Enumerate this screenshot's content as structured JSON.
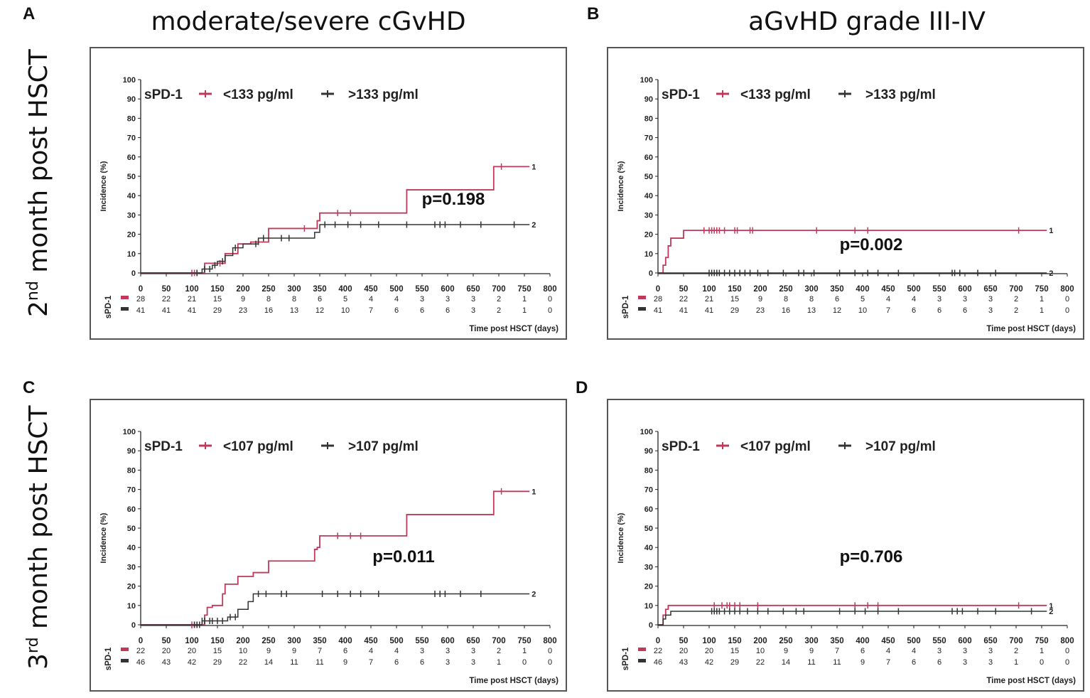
{
  "figure": {
    "column_titles": [
      "moderate/severe cGvHD",
      "aGvHD grade III-IV"
    ],
    "row_titles": [
      {
        "prefix": "2",
        "sup": "nd",
        "rest": " month post HSCT"
      },
      {
        "prefix": "3",
        "sup": "rd",
        "rest": " month post HSCT"
      }
    ],
    "colors": {
      "red": "#c0395a",
      "black": "#333333"
    }
  },
  "chart_data": [
    {
      "panel": "A",
      "type": "line",
      "step": true,
      "ylabel": "Incidence (%)",
      "xlabel": "Time post HSCT (days)",
      "xlim": [
        0,
        800
      ],
      "ylim": [
        0,
        100
      ],
      "xticks": [
        0,
        50,
        100,
        150,
        200,
        250,
        300,
        350,
        400,
        450,
        500,
        550,
        600,
        650,
        700,
        750,
        800
      ],
      "yticks": [
        0,
        10,
        20,
        30,
        40,
        50,
        60,
        70,
        80,
        90,
        100
      ],
      "legend_title": "sPD-1",
      "legend": [
        "<133 pg/ml",
        ">133 pg/ml"
      ],
      "p_value": "p=0.198",
      "risk_label": "sPD-1",
      "series": [
        {
          "name": "<133 pg/ml",
          "end_label": "1",
          "color": "#c0395a",
          "x": [
            0,
            125,
            165,
            190,
            215,
            250,
            345,
            350,
            520,
            690,
            760
          ],
          "y": [
            0,
            5,
            10,
            15,
            16,
            23,
            27,
            31,
            43,
            55,
            55
          ],
          "censor": [
            100,
            105,
            110,
            155,
            230,
            320,
            385,
            410,
            705
          ],
          "at_risk": [
            28,
            22,
            21,
            15,
            9,
            8,
            8,
            6,
            5,
            4,
            4,
            3,
            3,
            3,
            2,
            1,
            0
          ]
        },
        {
          "name": ">133 pg/ml",
          "end_label": "2",
          "color": "#333333",
          "x": [
            0,
            120,
            140,
            150,
            165,
            180,
            200,
            230,
            340,
            350,
            760
          ],
          "y": [
            0,
            2,
            4,
            6,
            9,
            13,
            15,
            18,
            21,
            25,
            25
          ],
          "censor": [
            110,
            125,
            135,
            145,
            160,
            185,
            225,
            240,
            275,
            290,
            360,
            380,
            405,
            430,
            465,
            520,
            575,
            585,
            595,
            625,
            665,
            730
          ],
          "at_risk": [
            41,
            41,
            41,
            29,
            23,
            16,
            13,
            12,
            10,
            7,
            6,
            6,
            6,
            3,
            2,
            1,
            0
          ]
        }
      ]
    },
    {
      "panel": "B",
      "type": "line",
      "step": true,
      "ylabel": "Incidence (%)",
      "xlabel": "Time post HSCT (days)",
      "xlim": [
        0,
        800
      ],
      "ylim": [
        0,
        100
      ],
      "xticks": [
        0,
        50,
        100,
        150,
        200,
        250,
        300,
        350,
        400,
        450,
        500,
        550,
        600,
        650,
        700,
        750,
        800
      ],
      "yticks": [
        0,
        10,
        20,
        30,
        40,
        50,
        60,
        70,
        80,
        90,
        100
      ],
      "legend_title": "sPD-1",
      "legend": [
        "<133 pg/ml",
        ">133 pg/ml"
      ],
      "p_value": "p=0.002",
      "risk_label": "sPD-1",
      "series": [
        {
          "name": "<133 pg/ml",
          "end_label": "1",
          "color": "#c0395a",
          "x": [
            0,
            10,
            15,
            20,
            25,
            30,
            50,
            760
          ],
          "y": [
            0,
            4,
            8,
            14,
            18,
            18,
            22,
            22
          ],
          "censor": [
            90,
            100,
            105,
            110,
            115,
            120,
            130,
            150,
            155,
            180,
            185,
            310,
            385,
            410,
            705
          ],
          "at_risk": [
            28,
            22,
            21,
            15,
            9,
            8,
            8,
            6,
            5,
            4,
            4,
            3,
            3,
            3,
            2,
            1,
            0
          ]
        },
        {
          "name": ">133 pg/ml",
          "end_label": "2",
          "color": "#333333",
          "x": [
            0,
            760
          ],
          "y": [
            0,
            0
          ],
          "censor": [
            100,
            105,
            110,
            115,
            120,
            130,
            140,
            150,
            160,
            170,
            180,
            195,
            215,
            245,
            275,
            285,
            305,
            355,
            385,
            410,
            430,
            470,
            575,
            580,
            590,
            625,
            660
          ],
          "at_risk": [
            41,
            41,
            41,
            29,
            23,
            16,
            13,
            12,
            10,
            7,
            6,
            6,
            6,
            3,
            2,
            1,
            0
          ]
        }
      ]
    },
    {
      "panel": "C",
      "type": "line",
      "step": true,
      "ylabel": "Incidence (%)",
      "xlabel": "Time post HSCT (days)",
      "xlim": [
        0,
        800
      ],
      "ylim": [
        0,
        100
      ],
      "xticks": [
        0,
        50,
        100,
        150,
        200,
        250,
        300,
        350,
        400,
        450,
        500,
        550,
        600,
        650,
        700,
        750,
        800
      ],
      "yticks": [
        0,
        10,
        20,
        30,
        40,
        50,
        60,
        70,
        80,
        90,
        100
      ],
      "legend_title": "sPD-1",
      "legend": [
        "<107 pg/ml",
        ">107 pg/ml"
      ],
      "p_value": "p=0.011",
      "risk_label": "sPD-1",
      "series": [
        {
          "name": "<107 pg/ml",
          "end_label": "1",
          "color": "#c0395a",
          "x": [
            0,
            125,
            130,
            140,
            160,
            165,
            190,
            220,
            250,
            340,
            345,
            350,
            520,
            690,
            760
          ],
          "y": [
            0,
            5,
            9,
            10,
            16,
            21,
            25,
            27,
            33,
            39,
            40,
            46,
            57,
            69,
            69
          ],
          "censor": [
            100,
            105,
            110,
            385,
            410,
            430,
            705
          ],
          "at_risk": [
            22,
            20,
            20,
            15,
            10,
            9,
            9,
            7,
            6,
            4,
            4,
            3,
            3,
            3,
            2,
            1,
            0
          ]
        },
        {
          "name": ">107 pg/ml",
          "end_label": "2",
          "color": "#333333",
          "x": [
            0,
            120,
            170,
            190,
            210,
            220,
            760
          ],
          "y": [
            0,
            2,
            4,
            8,
            12,
            16,
            16
          ],
          "censor": [
            105,
            110,
            115,
            120,
            125,
            135,
            140,
            150,
            160,
            175,
            185,
            230,
            245,
            275,
            285,
            355,
            385,
            410,
            430,
            465,
            575,
            585,
            595,
            625,
            665
          ],
          "at_risk": [
            46,
            43,
            42,
            29,
            22,
            14,
            11,
            11,
            9,
            7,
            6,
            6,
            3,
            3,
            1,
            0,
            0
          ]
        }
      ]
    },
    {
      "panel": "D",
      "type": "line",
      "step": true,
      "ylabel": "Incidence (%)",
      "xlabel": "Time post HSCT (days)",
      "xlim": [
        0,
        800
      ],
      "ylim": [
        0,
        100
      ],
      "xticks": [
        0,
        50,
        100,
        150,
        200,
        250,
        300,
        350,
        400,
        450,
        500,
        550,
        600,
        650,
        700,
        750,
        800
      ],
      "yticks": [
        0,
        10,
        20,
        30,
        40,
        50,
        60,
        70,
        80,
        90,
        100
      ],
      "legend_title": "sPD-1",
      "legend": [
        "<107 pg/ml",
        ">107 pg/ml"
      ],
      "p_value": "p=0.706",
      "risk_label": "sPD-1",
      "series": [
        {
          "name": "<107 pg/ml",
          "end_label": "1",
          "color": "#c0395a",
          "x": [
            0,
            10,
            15,
            20,
            760
          ],
          "y": [
            0,
            5,
            8,
            10,
            10
          ],
          "censor": [
            110,
            125,
            135,
            140,
            150,
            160,
            195,
            385,
            410,
            430,
            705
          ],
          "at_risk": [
            22,
            20,
            20,
            15,
            10,
            9,
            9,
            7,
            6,
            4,
            4,
            3,
            3,
            3,
            2,
            1,
            0
          ]
        },
        {
          "name": ">107 pg/ml",
          "end_label": "2",
          "color": "#333333",
          "x": [
            0,
            10,
            15,
            25,
            760
          ],
          "y": [
            0,
            3,
            5,
            7,
            7
          ],
          "censor": [
            105,
            110,
            115,
            120,
            130,
            140,
            150,
            160,
            175,
            195,
            215,
            245,
            270,
            285,
            355,
            385,
            405,
            430,
            470,
            575,
            585,
            595,
            625,
            660,
            730
          ],
          "at_risk": [
            46,
            43,
            42,
            29,
            22,
            14,
            11,
            11,
            9,
            7,
            6,
            6,
            3,
            3,
            1,
            0,
            0
          ]
        }
      ]
    }
  ]
}
